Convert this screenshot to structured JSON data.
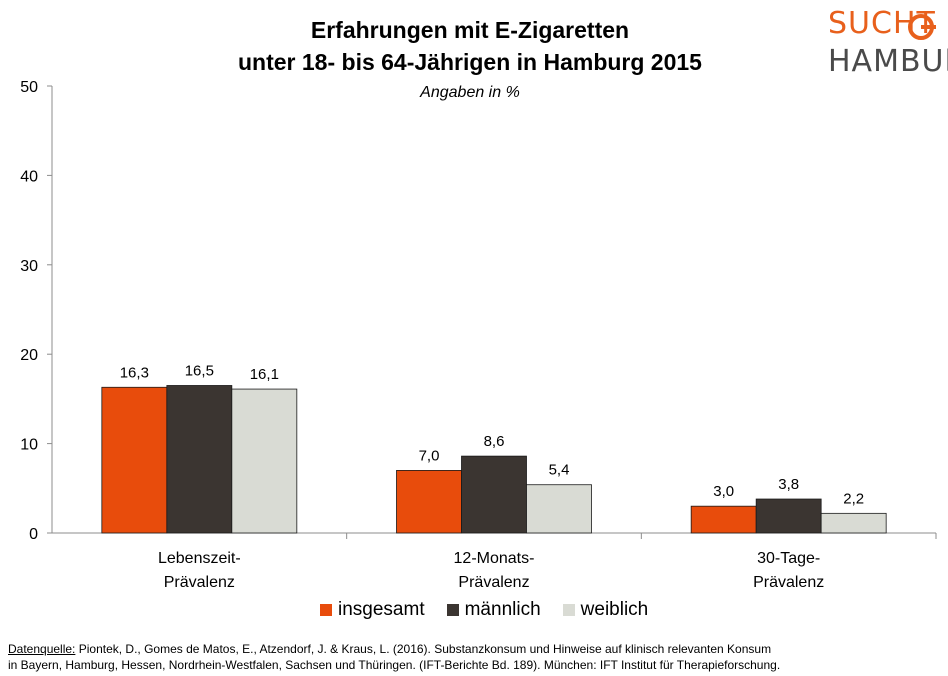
{
  "header": {
    "title_line1": "Erfahrungen mit E-Zigaretten",
    "title_line2": "unter 18- bis 64-Jährigen in Hamburg 2015",
    "subtitle": "Angaben in %"
  },
  "logo": {
    "line1": "SUCHT",
    "line2": "HAMBURG",
    "accent_color": "#e8601c",
    "text_color": "#4a4a4a"
  },
  "chart_data": {
    "type": "bar",
    "title": "Erfahrungen mit E-Zigaretten unter 18- bis 64-Jährigen in Hamburg 2015",
    "subtitle": "Angaben in %",
    "categories": [
      [
        "Lebenszeit-",
        "Prävalenz"
      ],
      [
        "12-Monats-",
        "Prävalenz"
      ],
      [
        "30-Tage-",
        "Prävalenz"
      ]
    ],
    "series": [
      {
        "name": "insgesamt",
        "color": "#e84c0c",
        "values": [
          16.3,
          7.0,
          3.0
        ],
        "labels": [
          "16,3",
          "7,0",
          "3,0"
        ]
      },
      {
        "name": "männlich",
        "color": "#3b3531",
        "values": [
          16.5,
          8.6,
          3.8
        ],
        "labels": [
          "16,5",
          "8,6",
          "3,8"
        ]
      },
      {
        "name": "weiblich",
        "color": "#d9dbd4",
        "values": [
          16.1,
          5.4,
          2.2
        ],
        "labels": [
          "16,1",
          "5,4",
          "2,2"
        ]
      }
    ],
    "yticks": [
      "0",
      "10",
      "20",
      "30",
      "40",
      "50"
    ],
    "ylim": [
      0,
      50
    ],
    "legend_position": "bottom",
    "grid": false
  },
  "source": {
    "label": "Datenquelle:",
    "line1": " Piontek, D., Gomes de Matos, E., Atzendorf, J. & Kraus, L. (2016). Substanzkonsum und Hinweise auf klinisch relevanten Konsum",
    "line2": "in Bayern, Hamburg, Hessen, Nordrhein-Westfalen, Sachsen und Thüringen. (IFT-Berichte Bd. 189). München: IFT Institut für Therapieforschung."
  }
}
